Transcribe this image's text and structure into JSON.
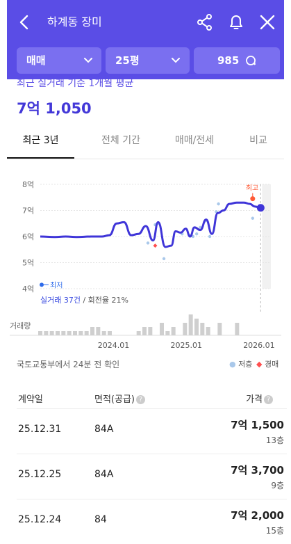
{
  "header": {
    "title": "하계동 장미",
    "filters": {
      "trade_type": "매매",
      "size": "25평",
      "count": "985"
    }
  },
  "summary": {
    "caption": "최근 실거래 기준 1개월 평균",
    "price": "7억 1,050"
  },
  "tabs": [
    "최근 3년",
    "전체 기간",
    "매매/전세",
    "비교"
  ],
  "chart": {
    "y_labels": [
      "8억",
      "7억",
      "6억",
      "5억",
      "4억"
    ],
    "x_labels": [
      "2024.01",
      "2025.01",
      "2026.01"
    ],
    "high_label": "최고",
    "low_label": "최저",
    "volume_label": "거래량",
    "note_count": "실거래 37건",
    "note_turnover": " / 회전율 21%",
    "colors": {
      "line": "#3f35d8",
      "high": "#ff5a36",
      "low": "#2e6bea",
      "point": "#a9c8ea",
      "auction": "#ff4f4f"
    }
  },
  "chart_data": {
    "type": "line",
    "ylim": [
      4,
      8
    ],
    "y_unit": "억",
    "xlim": [
      2023.0,
      2026.17
    ],
    "series": [
      {
        "values": [
          [
            2023.0,
            6.0
          ],
          [
            2023.2,
            5.98
          ],
          [
            2023.35,
            6.0
          ],
          [
            2023.5,
            5.98
          ],
          [
            2023.7,
            6.0
          ],
          [
            2023.85,
            6.0
          ],
          [
            2023.95,
            6.05
          ],
          [
            2024.05,
            6.5
          ],
          [
            2024.15,
            6.55
          ],
          [
            2024.25,
            6.05
          ],
          [
            2024.35,
            6.1
          ],
          [
            2024.45,
            6.4
          ],
          [
            2024.55,
            5.85
          ],
          [
            2024.62,
            6.55
          ],
          [
            2024.72,
            5.6
          ],
          [
            2024.8,
            5.65
          ],
          [
            2024.86,
            6.2
          ],
          [
            2024.93,
            6.15
          ],
          [
            2025.0,
            6.3
          ],
          [
            2025.06,
            6.0
          ],
          [
            2025.12,
            6.35
          ],
          [
            2025.2,
            6.25
          ],
          [
            2025.28,
            6.65
          ],
          [
            2025.36,
            6.1
          ],
          [
            2025.44,
            6.9
          ],
          [
            2025.52,
            7.0
          ],
          [
            2025.6,
            7.25
          ],
          [
            2025.7,
            7.3
          ],
          [
            2025.8,
            7.3
          ],
          [
            2025.88,
            7.25
          ],
          [
            2025.95,
            7.15
          ],
          [
            2026.03,
            7.1
          ]
        ]
      }
    ],
    "trade_points": [
      [
        2024.48,
        5.75
      ],
      [
        2024.58,
        6.45
      ],
      [
        2024.62,
        6.5
      ],
      [
        2024.7,
        5.15
      ],
      [
        2024.95,
        6.1
      ],
      [
        2025.05,
        6.05
      ],
      [
        2025.1,
        6.0
      ],
      [
        2025.15,
        6.1
      ],
      [
        2025.2,
        6.35
      ],
      [
        2025.27,
        6.6
      ],
      [
        2025.33,
        6.0
      ],
      [
        2025.42,
        6.95
      ],
      [
        2025.45,
        7.25
      ],
      [
        2025.92,
        6.7
      ]
    ],
    "auction_points": [
      [
        2024.58,
        5.65
      ]
    ],
    "highlight": {
      "high": [
        2025.92,
        7.45
      ],
      "low_y": 4.15
    },
    "volume": [
      1,
      1,
      1,
      1,
      1,
      1,
      1,
      1,
      1,
      2,
      2,
      1,
      1,
      0,
      0,
      0,
      0,
      1,
      2,
      2,
      0,
      3,
      1,
      2,
      0,
      3,
      5,
      4,
      3,
      2,
      0,
      3,
      0,
      0,
      3,
      0
    ]
  },
  "source": {
    "text": "국토교통부에서 24분 전 확인",
    "legend_floor": "저층",
    "legend_auction": "경매"
  },
  "table": {
    "headers": {
      "date": "계약일",
      "area": "면적(공급)",
      "price": "가격"
    },
    "rows": [
      {
        "date": "25.12.31",
        "area": "84A",
        "price": "7억 1,500",
        "floor": "13층"
      },
      {
        "date": "25.12.25",
        "area": "84A",
        "price": "7억 3,700",
        "floor": "9층"
      },
      {
        "date": "25.12.24",
        "area": "84",
        "price": "7억 2,000",
        "floor": "15층"
      }
    ]
  }
}
